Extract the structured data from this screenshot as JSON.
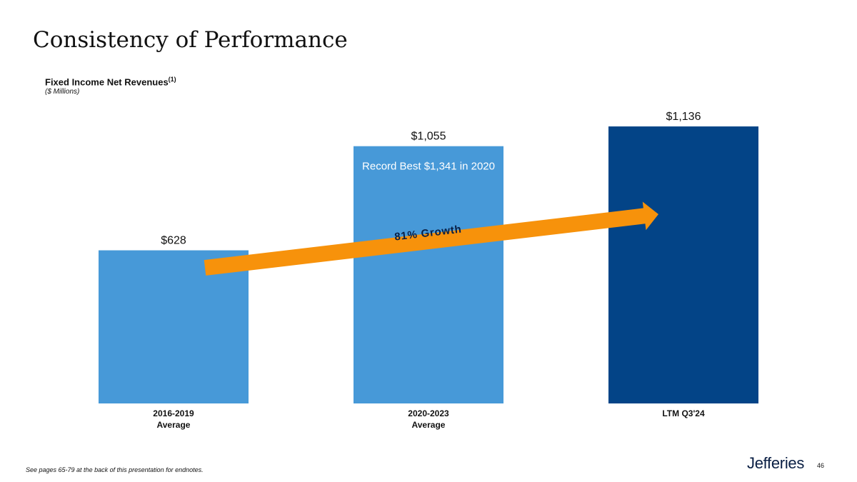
{
  "page": {
    "title": "Consistency of Performance",
    "chart_title": "Fixed Income Net Revenues",
    "chart_title_note": "(1)",
    "units": "($ Millions)",
    "footnote": "See pages 65-79 at the back of this presentation for endnotes.",
    "logo_text": "Jefferies",
    "page_number": "46"
  },
  "chart_data": {
    "type": "bar",
    "title": "Fixed Income Net Revenues",
    "xlabel": "",
    "ylabel": "",
    "ylim": [
      0,
      1200
    ],
    "grid": false,
    "categories": [
      [
        "2016-2019",
        "Average"
      ],
      [
        "2020-2023",
        "Average"
      ],
      [
        "LTM Q3'24"
      ]
    ],
    "values": [
      628,
      1055,
      1136
    ],
    "value_labels": [
      "$628",
      "$1,055",
      "$1,136"
    ],
    "colors": [
      "#4799d8",
      "#4799d8",
      "#034487"
    ],
    "annotations": [
      {
        "text": "Record Best $1,341 in 2020",
        "bar_index": 1
      },
      {
        "text": "81% Growth",
        "type": "arrow",
        "from_bar": 0,
        "to_bar": 2,
        "color": "#f7920b"
      }
    ]
  }
}
